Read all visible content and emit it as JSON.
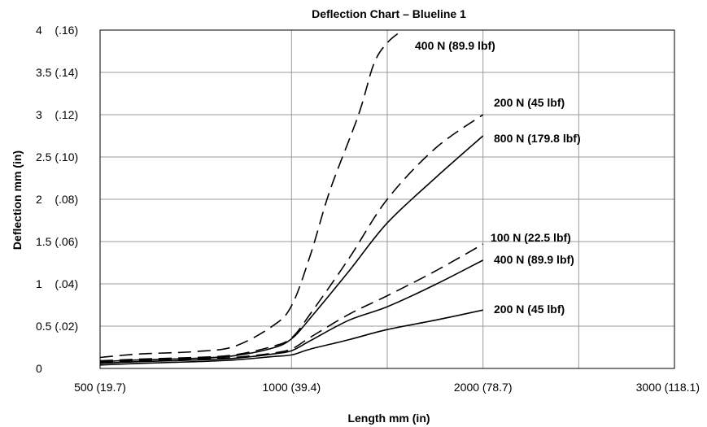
{
  "chart_data": {
    "type": "line",
    "title": "Deflection Chart – Blueline 1",
    "xlabel": "Length  mm (in)",
    "ylabel": "Deflection  mm (in)",
    "xlim": [
      500,
      3000
    ],
    "ylim": [
      0,
      4
    ],
    "x_ticks": [
      {
        "value": 500,
        "label": "500 (19.7)"
      },
      {
        "value": 1000,
        "label": "1000 (39.4)"
      },
      {
        "value": 2000,
        "label": "2000 (78.7)"
      },
      {
        "value": 3000,
        "label": "3000 (118.1)"
      }
    ],
    "x_gridlines": [
      500,
      1000,
      1500,
      2000,
      2500,
      3000
    ],
    "y_ticks": [
      {
        "value": 0,
        "label": "0"
      },
      {
        "value": 0.5,
        "label": "0.5 (.02)"
      },
      {
        "value": 1,
        "label": "1    (.04)"
      },
      {
        "value": 1.5,
        "label": "1.5 (.06)"
      },
      {
        "value": 2,
        "label": "2    (.08)"
      },
      {
        "value": 2.5,
        "label": "2.5 (.10)"
      },
      {
        "value": 3,
        "label": "3    (.12)"
      },
      {
        "value": 3.5,
        "label": "3.5 (.14)"
      },
      {
        "value": 4,
        "label": "4    (.16)"
      }
    ],
    "grid": true,
    "series": [
      {
        "name": "400 N (89.9 lbf)",
        "style": "dashed",
        "points": [
          [
            500,
            0.13
          ],
          [
            600,
            0.17
          ],
          [
            750,
            0.2
          ],
          [
            850,
            0.26
          ],
          [
            950,
            0.5
          ],
          [
            1000,
            0.74
          ],
          [
            1100,
            1.35
          ],
          [
            1200,
            2.1
          ],
          [
            1350,
            3.0
          ],
          [
            1430,
            3.6
          ],
          [
            1500,
            3.85
          ],
          [
            1580,
            4.0
          ]
        ]
      },
      {
        "name": "200 N (45 lbf)",
        "style": "dashed",
        "points": [
          [
            500,
            0.09
          ],
          [
            600,
            0.11
          ],
          [
            750,
            0.13
          ],
          [
            850,
            0.16
          ],
          [
            950,
            0.26
          ],
          [
            1000,
            0.36
          ],
          [
            1100,
            0.65
          ],
          [
            1300,
            1.3
          ],
          [
            1500,
            2.0
          ],
          [
            1750,
            2.6
          ],
          [
            2000,
            3.0
          ]
        ]
      },
      {
        "name": "800 N (179.8 lbf)",
        "style": "solid",
        "points": [
          [
            500,
            0.08
          ],
          [
            600,
            0.1
          ],
          [
            750,
            0.12
          ],
          [
            850,
            0.15
          ],
          [
            950,
            0.24
          ],
          [
            1000,
            0.35
          ],
          [
            1100,
            0.6
          ],
          [
            1300,
            1.15
          ],
          [
            1500,
            1.72
          ],
          [
            1750,
            2.25
          ],
          [
            2000,
            2.75
          ]
        ]
      },
      {
        "name": "100 N (22.5 lbf)",
        "style": "dashed",
        "points": [
          [
            500,
            0.07
          ],
          [
            600,
            0.09
          ],
          [
            750,
            0.11
          ],
          [
            850,
            0.13
          ],
          [
            950,
            0.18
          ],
          [
            1000,
            0.23
          ],
          [
            1100,
            0.37
          ],
          [
            1300,
            0.64
          ],
          [
            1500,
            0.86
          ],
          [
            1750,
            1.15
          ],
          [
            2000,
            1.47
          ]
        ]
      },
      {
        "name": "400 N (89.9 lbf)",
        "style": "solid",
        "points": [
          [
            500,
            0.06
          ],
          [
            600,
            0.08
          ],
          [
            750,
            0.1
          ],
          [
            850,
            0.12
          ],
          [
            950,
            0.17
          ],
          [
            1000,
            0.21
          ],
          [
            1100,
            0.33
          ],
          [
            1300,
            0.57
          ],
          [
            1500,
            0.73
          ],
          [
            1750,
            0.99
          ],
          [
            2000,
            1.28
          ]
        ]
      },
      {
        "name": "200 N (45 lbf)",
        "style": "solid",
        "points": [
          [
            500,
            0.04
          ],
          [
            600,
            0.06
          ],
          [
            750,
            0.08
          ],
          [
            850,
            0.1
          ],
          [
            950,
            0.14
          ],
          [
            1000,
            0.16
          ],
          [
            1100,
            0.23
          ],
          [
            1300,
            0.34
          ],
          [
            1500,
            0.46
          ],
          [
            1750,
            0.57
          ],
          [
            2000,
            0.69
          ]
        ]
      }
    ]
  }
}
